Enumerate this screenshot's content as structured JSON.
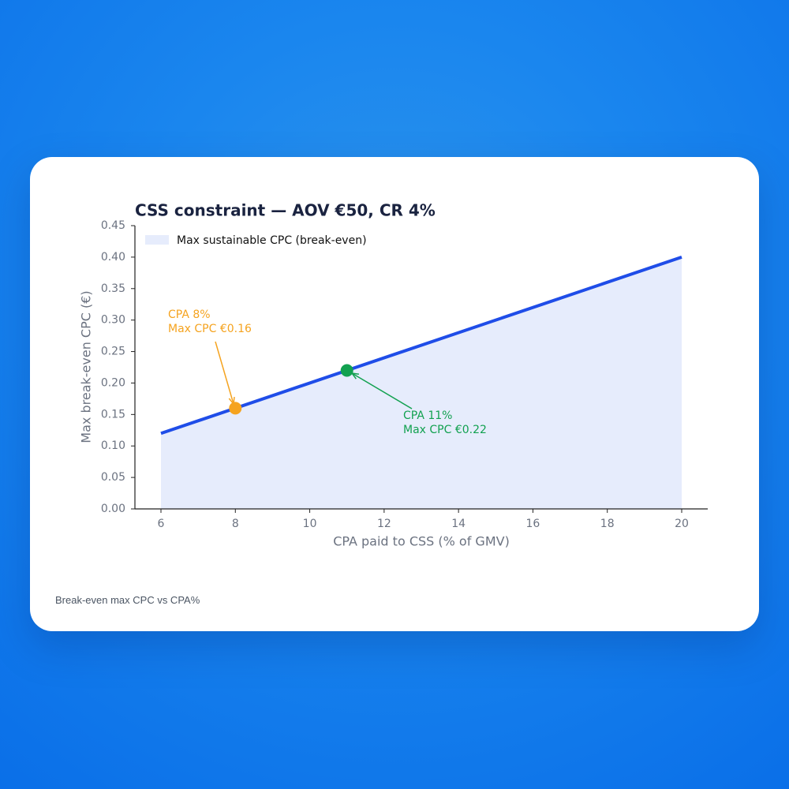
{
  "chart_data": {
    "type": "area_line",
    "title": "CSS constraint — AOV €50, CR 4%",
    "x_label": "CPA paid to CSS (% of GMV)",
    "y_label": "Max break-even CPC (€)",
    "x": [
      6,
      20
    ],
    "series": [
      {
        "name": "Max sustainable CPC (break-even)",
        "color": "#1f4de8",
        "fill": "#e6ecfc",
        "values": [
          0.12,
          0.4
        ]
      }
    ],
    "xlim": [
      5.3,
      20.7
    ],
    "ylim": [
      0,
      0.45
    ],
    "xticks": [
      6,
      8,
      10,
      12,
      14,
      16,
      18,
      20
    ],
    "yticks": [
      {
        "value": 0,
        "label": "0.00"
      },
      {
        "value": 0.05,
        "label": "0.05"
      },
      {
        "value": 0.1,
        "label": "0.10"
      },
      {
        "value": 0.15,
        "label": "0.15"
      },
      {
        "value": 0.2,
        "label": "0.20"
      },
      {
        "value": 0.25,
        "label": "0.25"
      },
      {
        "value": 0.3,
        "label": "0.30"
      },
      {
        "value": 0.35,
        "label": "0.35"
      },
      {
        "value": 0.4,
        "label": "0.40"
      },
      {
        "value": 0.45,
        "label": "0.45"
      }
    ],
    "legend": "upper left",
    "annotations": [
      {
        "x": 8,
        "y": 0.16,
        "color": "#f5a31f",
        "lines": [
          "CPA 8%",
          "Max CPC €0.16"
        ]
      },
      {
        "x": 11,
        "y": 0.22,
        "color": "#12a150",
        "lines": [
          "CPA 11%",
          "Max CPC €0.22"
        ]
      }
    ]
  },
  "caption": "Break-even max CPC vs CPA%"
}
